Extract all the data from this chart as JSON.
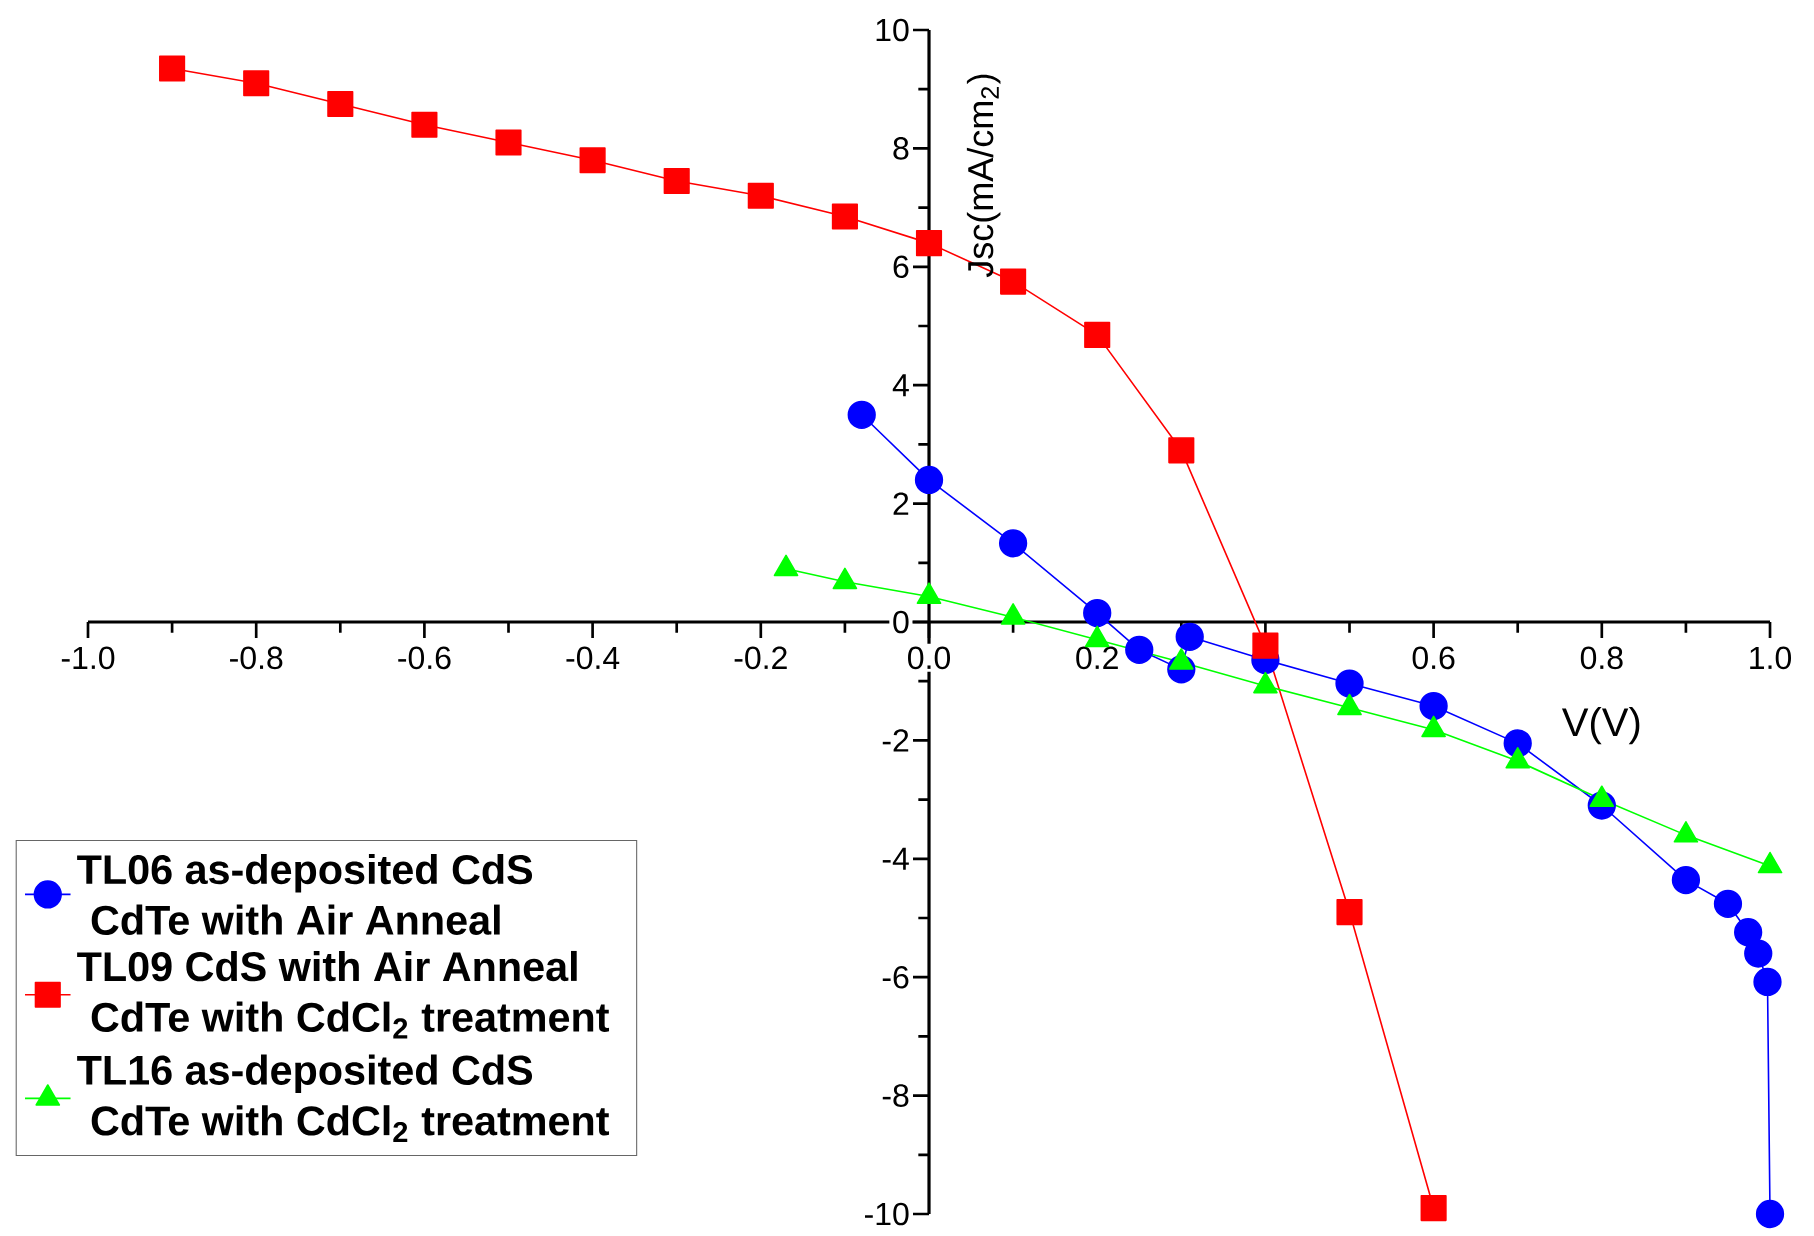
{
  "chart_data": {
    "type": "line",
    "xlabel": "V(V)",
    "ylabel": "Jsc(mA/cm$_{2}$)",
    "xlim": [
      -1.0,
      1.0
    ],
    "ylim": [
      -10,
      10
    ],
    "xticks": [
      {
        "value": -1.0,
        "label": "-1.0"
      },
      {
        "value": -0.8,
        "label": "-0.8"
      },
      {
        "value": -0.6,
        "label": "-0.6"
      },
      {
        "value": -0.4,
        "label": "-0.4"
      },
      {
        "value": -0.2,
        "label": "-0.2"
      },
      {
        "value": 0,
        "label": "0.0"
      },
      {
        "value": 0.2,
        "label": "0.2"
      },
      {
        "value": 0.4,
        "label": null
      },
      {
        "value": 0.6,
        "label": "0.6"
      },
      {
        "value": 0.8,
        "label": "0.8"
      },
      {
        "value": 1.0,
        "label": "1.0"
      }
    ],
    "yticks": [
      -10,
      -8,
      -6,
      -4,
      -2,
      0,
      2,
      4,
      6,
      8,
      10
    ],
    "grid": false,
    "legend": "bottom left",
    "series": [
      {
        "name": "TL06 as-deposited CdS CdTe with Air Anneal",
        "color": "#0000ff",
        "marker": "circle",
        "x": [
          -0.08,
          0,
          0.1,
          0.2,
          0.25,
          0.3,
          0.31,
          0.4,
          0.5,
          0.6,
          0.7,
          0.8,
          0.9,
          0.95,
          0.974,
          0.986,
          0.997,
          1.0
        ],
        "values": [
          3.5,
          2.4,
          1.33,
          0.15,
          -0.47,
          -0.8,
          -0.25,
          -0.64,
          -1.04,
          -1.42,
          -2.05,
          -3.1,
          -4.36,
          -4.76,
          -5.24,
          -5.6,
          -6.08,
          -10
        ]
      },
      {
        "name": "TL09 CdS with Air Anneal CdTe with CdCl$_{2}$ treatment",
        "color": "#ff0000",
        "marker": "square",
        "x": [
          -0.9,
          -0.8,
          -0.7,
          -0.6,
          -0.5,
          -0.4,
          -0.3,
          -0.2,
          -0.1,
          0.0,
          0.1,
          0.2,
          0.3,
          0.4,
          0.5,
          0.6
        ],
        "values": [
          9.35,
          9.1,
          8.75,
          8.4,
          8.1,
          7.8,
          7.45,
          7.2,
          6.85,
          6.4,
          5.75,
          4.85,
          2.9,
          -0.4,
          -4.9,
          -9.9
        ]
      },
      {
        "name": "TL16 as-deposited CdS CdTe with CdCl$_{2}$ treatment",
        "color": "#00ff00",
        "marker": "triangle",
        "x": [
          -0.17,
          -0.1,
          0,
          0.1,
          0.2,
          0.3,
          0.4,
          0.5,
          0.6,
          0.7,
          0.8,
          0.9,
          1.0
        ],
        "values": [
          0.9,
          0.68,
          0.43,
          0.08,
          -0.3,
          -0.68,
          -1.08,
          -1.45,
          -1.82,
          -2.35,
          -3.0,
          -3.6,
          -4.12
        ]
      }
    ]
  }
}
